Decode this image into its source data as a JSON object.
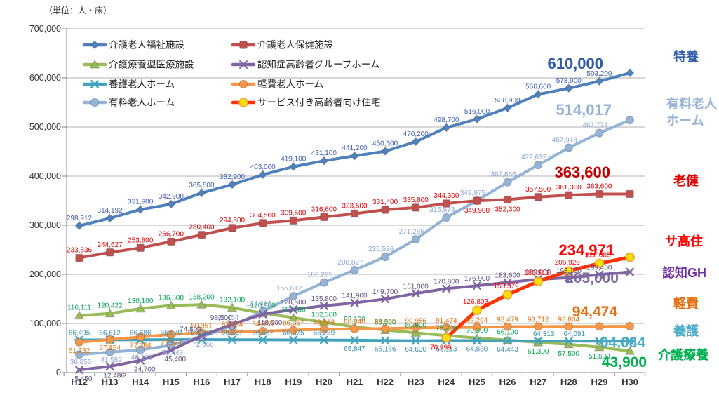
{
  "unit_note": "（単位：人・床）",
  "chart_data": {
    "type": "line",
    "title": "",
    "xlabel": "",
    "ylabel": "",
    "ylim": [
      0,
      700000
    ],
    "ytick_step": 100000,
    "ytick_labels": [
      "0",
      "100,000",
      "200,000",
      "300,000",
      "400,000",
      "500,000",
      "600,000",
      "700,000"
    ],
    "grid": "horizontal",
    "legend_position": "top-left-two-columns",
    "categories": [
      "H12",
      "H13",
      "H14",
      "H15",
      "H16",
      "H17",
      "H18",
      "H19",
      "H20",
      "H21",
      "H22",
      "H23",
      "H24",
      "H25",
      "H26",
      "H27",
      "H28",
      "H29",
      "H30"
    ],
    "series": [
      {
        "name": "介護老人福祉施設",
        "short_label": "特養",
        "marker": "diamond",
        "line_color": "#4F81BD",
        "label_color": "#3E5CB8",
        "accent_color": "#2F5CA8",
        "final_label": "610,000",
        "values": [
          298912,
          314192,
          331900,
          342900,
          365800,
          382900,
          403000,
          419100,
          431100,
          441200,
          450600,
          470200,
          498700,
          516000,
          538900,
          566600,
          578900,
          593200,
          610000
        ]
      },
      {
        "name": "介護老人保健施設",
        "short_label": "老健",
        "marker": "square",
        "line_color": "#C0504D",
        "label_color": "#E30000",
        "accent_color": "#C00000",
        "final_label": "363,600",
        "values": [
          233536,
          244627,
          253800,
          266700,
          280400,
          294500,
          304500,
          309500,
          316600,
          323500,
          331400,
          335800,
          344300,
          349900,
          352300,
          357500,
          361300,
          363600,
          363600
        ]
      },
      {
        "name": "介護療養型医療施設",
        "short_label": "介護療養",
        "marker": "triangle",
        "line_color": "#9BBB59",
        "label_color": "#00A550",
        "accent_color": "#00B050",
        "final_label": "43,900",
        "values": [
          116111,
          120422,
          130100,
          136500,
          138200,
          132100,
          120900,
          111800,
          102300,
          93100,
          86500,
          80900,
          75200,
          70300,
          66100,
          61300,
          57500,
          51600,
          43900
        ]
      },
      {
        "name": "認知症高齢者グループホーム",
        "short_label": "認知GH",
        "marker": "xmark",
        "line_color": "#8064A2",
        "label_color": "#604A7B",
        "accent_color": "#7030A0",
        "final_label": "205,000",
        "values": [
          5450,
          12486,
          24700,
          45400,
          74800,
          98500,
          118900,
          128500,
          135800,
          141900,
          149700,
          161000,
          170800,
          176900,
          183600,
          189800,
          193100,
          199400,
          205000
        ]
      },
      {
        "name": "養護老人ホーム",
        "short_label": "養護",
        "marker": "asterisk",
        "line_color": "#43A2BC",
        "label_color": "#3D8EB0",
        "accent_color": "#4BACC6",
        "final_label": "64,084",
        "label_skip": [
          17
        ],
        "values": [
          66495,
          66612,
          66686,
          66970,
          67181,
          66837,
          66667,
          66375,
          66239,
          65847,
          65186,
          64630,
          65113,
          64830,
          64443,
          64313,
          64091,
          64000,
          64084
        ]
      },
      {
        "name": "軽費老人ホーム",
        "short_label": "軽費",
        "marker": "circle",
        "line_color": "#F79646",
        "label_color": "#E46C0A",
        "accent_color": "#E46C0A",
        "final_label": "94,474",
        "label_skip": [
          17
        ],
        "values": [
          61732,
          67154,
          72364,
          77374,
          80951,
          83694,
          84325,
          86367,
          88068,
          88940,
          89385,
          90956,
          91474,
          92204,
          93479,
          93712,
          93804,
          94000,
          94474
        ]
      },
      {
        "name": "有料老人ホーム",
        "short_label": "有料老人ホーム",
        "short_label_lines": [
          "有料老人",
          "ホーム"
        ],
        "marker": "circle",
        "line_color": "#95B3D7",
        "label_color": "#8CA6D4",
        "accent_color": "#95B3D7",
        "final_label": "514,017",
        "values": [
          36855,
          41582,
          46121,
          55448,
          72666,
          95454,
          124610,
          155612,
          183295,
          208827,
          235526,
          271286,
          315678,
          349975,
          387666,
          422612,
          457918,
          487774,
          514017
        ]
      },
      {
        "name": "サービス付き高齢者向け住宅",
        "short_label": "サ高住",
        "marker": "dot",
        "line_color": "#FF3300",
        "marker_fill": "#FFDE00",
        "label_color": "#FF0000",
        "accent_color": "#FF0000",
        "final_label": "234,971",
        "values": [
          null,
          null,
          null,
          null,
          null,
          null,
          null,
          null,
          null,
          null,
          null,
          null,
          70999,
          126803,
          158579,
          185512,
          206929,
          222085,
          234971
        ]
      }
    ]
  }
}
